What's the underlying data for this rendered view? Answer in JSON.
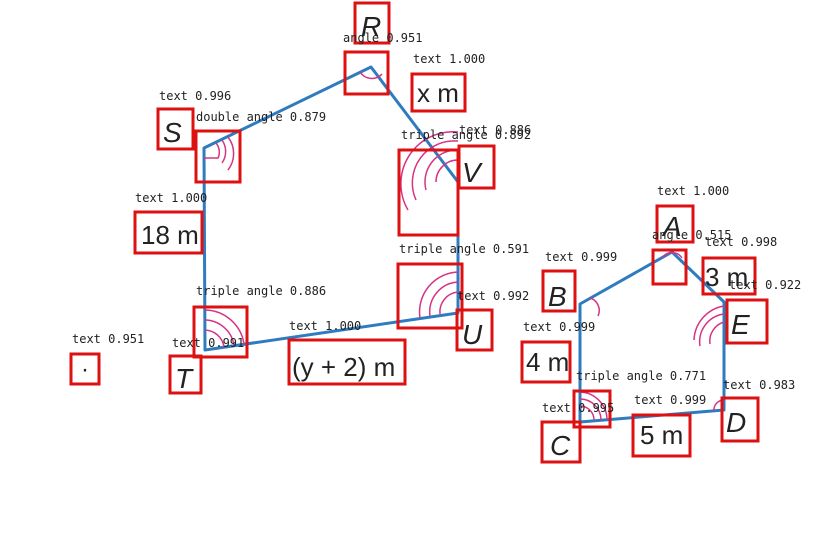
{
  "colors": {
    "polygon_stroke": "#2f7bbf",
    "angle_arc": "#d63384",
    "detection_box": "#dd1111",
    "text": "#222222",
    "background": "#ffffff"
  },
  "vertex_labels": {
    "R": "R",
    "S": "S",
    "T": "T",
    "U": "U",
    "V": "V",
    "A": "A",
    "B": "B",
    "C": "C",
    "D": "D",
    "E": "E"
  },
  "side_labels": {
    "x": "x m",
    "18": "18 m",
    "y2": "(y + 2) m",
    "three": "3 m",
    "four": "4 m",
    "five": "5 m",
    "dot": "·"
  },
  "detections": {
    "angle_R": "angle 0.951",
    "text_x": "text 1.000",
    "text_S": "text 0.996",
    "dbl_S": "double angle 0.879",
    "tri_V": "triple angle 0.892",
    "text_V": "text 0.886",
    "text_18": "text 1.000",
    "tri_U": "triple angle 0.591",
    "text_U": "text 0.992",
    "tri_T": "triple angle 0.886",
    "text_y2": "text 1.000",
    "text_dot": "text 0.951",
    "text_T": "text 0.991",
    "text_A": "text 1.000",
    "angle_A": "angle 0.515",
    "text_3": "text 0.998",
    "text_B": "text 0.999",
    "text_E": "text 0.922",
    "text_4": "text 0.999",
    "tri_C": "triple angle 0.771",
    "text_D": "text 0.983",
    "text_C": "text 0.995",
    "text_5": "text 0.999"
  }
}
